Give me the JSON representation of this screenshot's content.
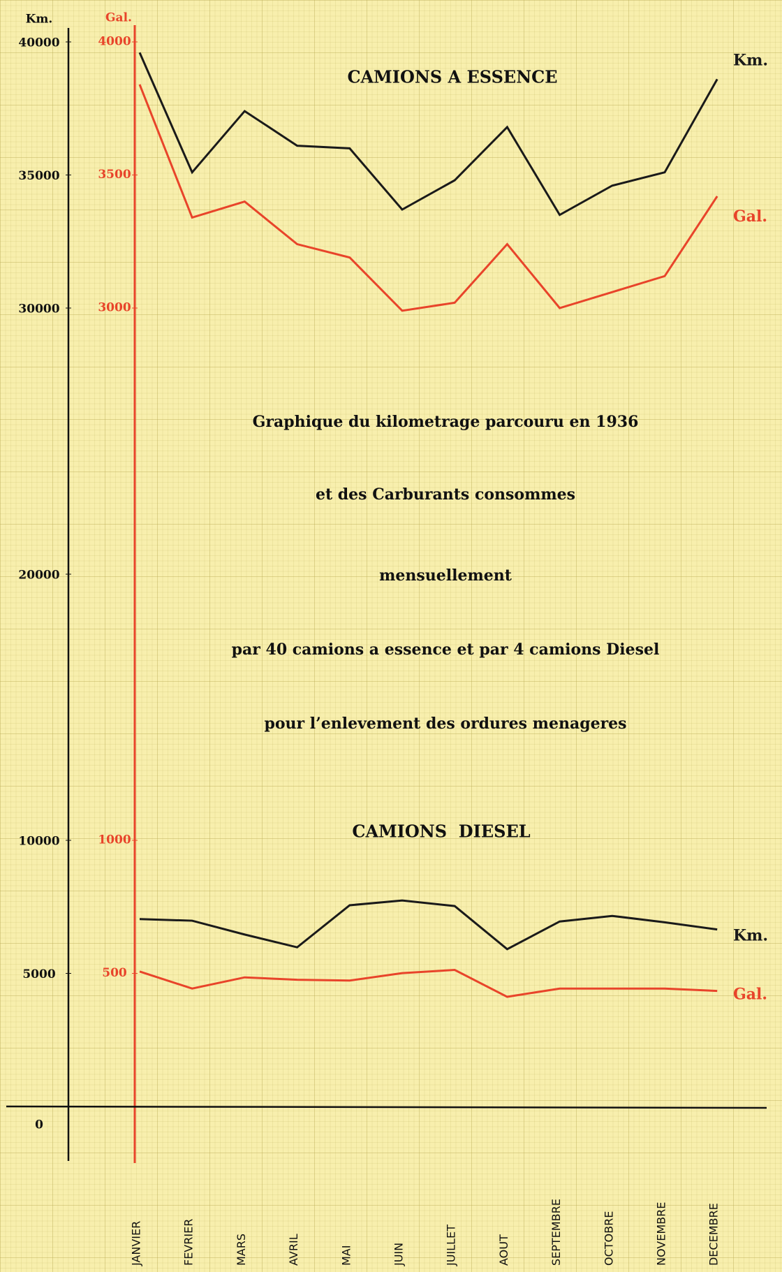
{
  "chart_data": {
    "type": "line",
    "y_axis_label": "Km.",
    "y2_axis_label": "Gal.",
    "panel_titles": [
      "CAMIONS A ESSENCE",
      "CAMIONS  DIESEL"
    ],
    "annotations": [
      "Graphique du kilometrage parcouru en 1936",
      "et des Carburants consommes",
      "mensuellement",
      "par 40 camions a essence et par 4 camions Diesel",
      "pour l’enlevement des ordures menageres"
    ],
    "categories": [
      "JANVIER",
      "FEVRIER",
      "MARS",
      "AVRIL",
      "MAI",
      "JUIN",
      "JUILLET",
      "AOUT",
      "SEPTEMBRE",
      "OCTOBRE",
      "NOVEMBRE",
      "DECEMBRE"
    ],
    "ylim": [
      0,
      40000
    ],
    "yticks": [
      0,
      5000,
      10000,
      20000,
      30000,
      35000,
      40000
    ],
    "y2lim": [
      0,
      4000
    ],
    "y2ticks": [
      500,
      1000,
      3000,
      3500,
      4000
    ],
    "series": [
      {
        "name": "Km.",
        "color": "#1a1a1a",
        "values": [
          39600,
          35100,
          37400,
          36100,
          36000,
          33700,
          34800,
          36800,
          33500,
          34600,
          35100,
          38600
        ]
      },
      {
        "name": "Gal.",
        "color": "#e8442a",
        "axis": "y2",
        "values": [
          3840,
          3340,
          3400,
          3240,
          3190,
          2990,
          3020,
          3240,
          3000,
          3060,
          3120,
          3420
        ]
      },
      {
        "name": "Km.",
        "color": "#1a1a1a",
        "values": [
          7040,
          6980,
          6460,
          5980,
          7560,
          7740,
          7530,
          5910,
          6950,
          7160,
          6920,
          6650
        ]
      },
      {
        "name": "Gal.",
        "color": "#e8442a",
        "axis": "y2",
        "values": [
          507,
          443,
          485,
          476,
          473,
          501,
          513,
          412,
          443,
          443,
          443,
          434
        ]
      }
    ]
  }
}
